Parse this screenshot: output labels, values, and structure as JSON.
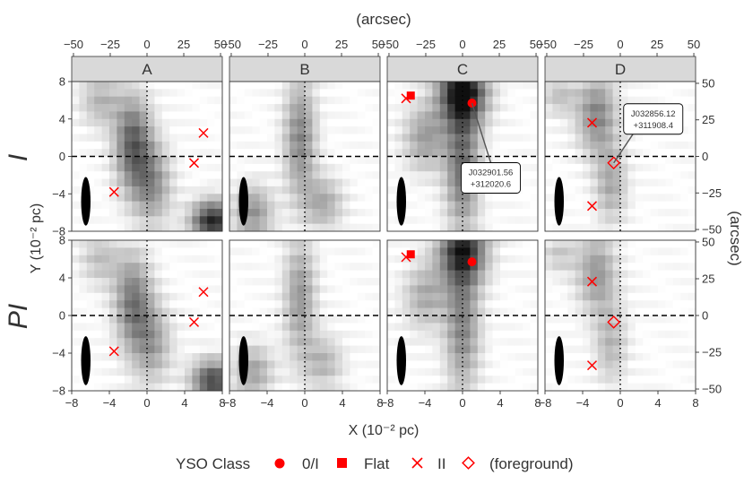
{
  "chart_data": {
    "type": "heatmap",
    "description_facets": [
      "A",
      "B",
      "C",
      "D"
    ],
    "row_labels": [
      "I",
      "PI"
    ],
    "xlabel": "X (10⁻² pc)",
    "ylabel": "Y (10⁻² pc)",
    "top_axis_label": "(arcsec)",
    "right_axis_label": "(arcsec)",
    "xlim": [
      -8,
      8
    ],
    "ylim": [
      -8,
      8
    ],
    "x_ticks": [
      -8,
      -4,
      0,
      4,
      8
    ],
    "y_ticks": [
      -8,
      -4,
      0,
      4,
      8
    ],
    "arcsec_ticks": [
      -50,
      -25,
      0,
      25,
      50
    ],
    "arcsec_per_unit": 6.4,
    "ticks_text": {
      "x": [
        "−8",
        "−4",
        "0",
        "4",
        "8"
      ],
      "y": [
        "−8",
        "−4",
        "0",
        "4",
        "8"
      ],
      "arcsec": [
        "−50",
        "−25",
        "0",
        "25",
        "50"
      ]
    },
    "beam": {
      "x": -6.5,
      "y": -4.8,
      "width": 1.0,
      "height": 5.2
    },
    "facets": [
      {
        "label": "A",
        "blobs": [
          {
            "x": -1.5,
            "y": 1.5,
            "sx": 1.4,
            "sy": 3.5,
            "a": 0.65
          },
          {
            "x": 0.5,
            "y": -3.0,
            "sx": 1.5,
            "sy": 3.0,
            "a": 0.45
          },
          {
            "x": 7.0,
            "y": -7.0,
            "sx": 1.6,
            "sy": 1.6,
            "a": 0.9
          },
          {
            "x": -5.0,
            "y": 6.0,
            "sx": 1.5,
            "sy": 2.0,
            "a": 0.3
          }
        ],
        "sources": [
          {
            "class": "II",
            "x": 6.0,
            "y": 2.5
          },
          {
            "class": "II",
            "x": 5.0,
            "y": -0.7
          },
          {
            "class": "II",
            "x": -3.5,
            "y": -3.8
          }
        ]
      },
      {
        "label": "B",
        "blobs": [
          {
            "x": -0.5,
            "y": 2.0,
            "sx": 1.2,
            "sy": 4.5,
            "a": 0.5
          },
          {
            "x": -5.5,
            "y": -6.0,
            "sx": 1.5,
            "sy": 2.0,
            "a": 0.45
          },
          {
            "x": 2.0,
            "y": -5.0,
            "sx": 1.5,
            "sy": 2.0,
            "a": 0.35
          }
        ],
        "sources": []
      },
      {
        "label": "C",
        "blobs": [
          {
            "x": 0.0,
            "y": 7.0,
            "sx": 1.8,
            "sy": 2.5,
            "a": 1.0
          },
          {
            "x": 0.0,
            "y": -1.0,
            "sx": 1.3,
            "sy": 5.0,
            "a": 0.6
          },
          {
            "x": -4.0,
            "y": 2.0,
            "sx": 1.6,
            "sy": 2.5,
            "a": 0.4
          }
        ],
        "sources": [
          {
            "class": "0/I",
            "x": 1.0,
            "y": 5.7
          },
          {
            "class": "Flat",
            "x": -5.5,
            "y": 6.5
          },
          {
            "class": "II",
            "x": -6.0,
            "y": 6.2
          }
        ],
        "annotation": {
          "name": "J032901.56",
          "id": "+312020.6",
          "target_x": 1.0,
          "target_y": 5.7,
          "label_x": 3.0,
          "label_y": -2.3
        }
      },
      {
        "label": "D",
        "blobs": [
          {
            "x": -2.5,
            "y": 4.5,
            "sx": 1.5,
            "sy": 3.0,
            "a": 0.5
          },
          {
            "x": -1.0,
            "y": -3.0,
            "sx": 1.2,
            "sy": 3.0,
            "a": 0.35
          },
          {
            "x": -6.5,
            "y": 6.5,
            "sx": 1.3,
            "sy": 1.5,
            "a": 0.25
          }
        ],
        "sources": [
          {
            "class": "II",
            "x": -3.0,
            "y": 3.6
          },
          {
            "class": "II",
            "x": -3.0,
            "y": -5.3
          },
          {
            "class": "foreground",
            "x": -0.7,
            "y": -0.7
          }
        ],
        "annotation": {
          "name": "J032856.12",
          "id": "+311908.4",
          "target_x": -0.7,
          "target_y": -0.7,
          "label_x": 3.5,
          "label_y": 4.0
        }
      }
    ],
    "legend": {
      "title": "YSO Class",
      "entries": [
        {
          "class": "0/I",
          "label": "0/I"
        },
        {
          "class": "Flat",
          "label": "Flat"
        },
        {
          "class": "II",
          "label": "II"
        },
        {
          "class": "foreground",
          "label": "(foreground)"
        }
      ],
      "placement": "bottom"
    },
    "colors": {
      "marker": "#ff0000",
      "strip": "#d9d9d9",
      "axis": "#333333",
      "grid_line": "#000000"
    }
  }
}
